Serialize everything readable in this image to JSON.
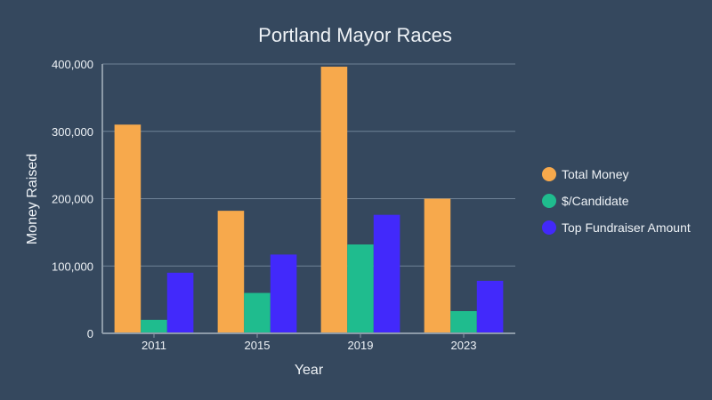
{
  "chart_data": {
    "type": "bar",
    "title": "Portland Mayor Races",
    "xlabel": "Year",
    "ylabel": "Money Raised",
    "categories": [
      "2011",
      "2015",
      "2019",
      "2023"
    ],
    "series": [
      {
        "name": "Total Money",
        "color": "#f7a94c",
        "values": [
          310000,
          182000,
          396000,
          200000
        ]
      },
      {
        "name": "$/Candidate",
        "color": "#1fbc8e",
        "values": [
          20000,
          60000,
          132000,
          33000
        ]
      },
      {
        "name": "Top Fundraiser Amount",
        "color": "#4229fb",
        "values": [
          90000,
          117000,
          176000,
          78000
        ]
      }
    ],
    "ylim": [
      0,
      400000
    ],
    "yticks": [
      0,
      100000,
      200000,
      300000,
      400000
    ],
    "ytick_labels": [
      "0",
      "100,000",
      "200,000",
      "300,000",
      "400,000"
    ],
    "grid": true,
    "legend": "right"
  }
}
